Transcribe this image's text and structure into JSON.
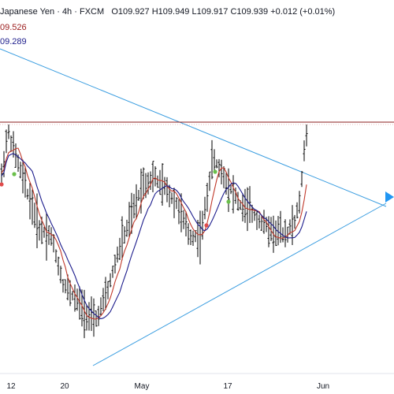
{
  "legend": {
    "symbol": "Japanese Yen",
    "interval": "4h",
    "exchange": "FXCM",
    "open": "O109.927",
    "high": "H109.949",
    "low": "L109.917",
    "close": "C109.939",
    "change": "+0.012 (+0.01%)",
    "ma1_value": "09.526",
    "ma2_value": "09.289"
  },
  "colors": {
    "background": "#ffffff",
    "bars": "#000000",
    "ma_fast": "#c0392b",
    "ma_slow": "#1c1c8c",
    "trendline": "#3a9de0",
    "resistance": "#8b1c1c",
    "signal_green": "#6bc04b",
    "signal_red": "#e04b4b",
    "scroll_arrow": "#2196f3"
  },
  "icons": {
    "scroll_right": "triangle-right-icon"
  },
  "chart_data": {
    "type": "ohlc-bar",
    "x_tick_labels": [
      "12",
      "20",
      "May",
      "17",
      "Jun"
    ],
    "series": [
      {
        "key": "price",
        "kind": "ohlc"
      },
      {
        "key": "ma_fast",
        "kind": "line",
        "value_label": "09.526"
      },
      {
        "key": "ma_slow",
        "kind": "line",
        "value_label": "09.289"
      }
    ],
    "annotations": [
      {
        "kind": "trendline",
        "label": ""
      },
      {
        "kind": "trendline",
        "label": ""
      },
      {
        "kind": "horizontal",
        "label": ""
      }
    ]
  }
}
